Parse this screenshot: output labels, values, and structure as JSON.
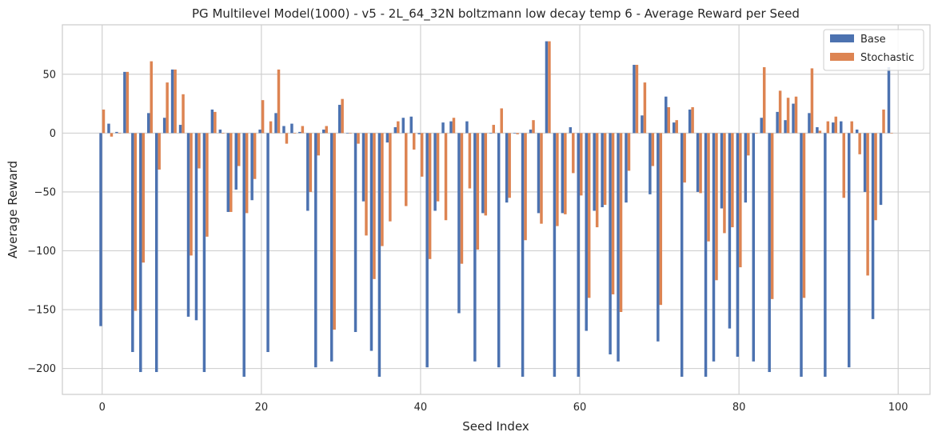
{
  "chart_data": {
    "type": "bar",
    "title": "PG Multilevel Model(1000) - v5 - 2L_64_32N boltzmann low decay temp 6 - Average Reward per Seed",
    "xlabel": "Seed Index",
    "ylabel": "Average Reward",
    "xlim": [
      -5,
      104
    ],
    "ylim": [
      -222,
      92
    ],
    "xticks": [
      0,
      20,
      40,
      60,
      80,
      100
    ],
    "yticks": [
      -200,
      -150,
      -100,
      -50,
      0,
      50
    ],
    "grid": true,
    "legend_position": "top-right",
    "categories": [
      0,
      1,
      2,
      3,
      4,
      5,
      6,
      7,
      8,
      9,
      10,
      11,
      12,
      13,
      14,
      15,
      16,
      17,
      18,
      19,
      20,
      21,
      22,
      23,
      24,
      25,
      26,
      27,
      28,
      29,
      30,
      31,
      32,
      33,
      34,
      35,
      36,
      37,
      38,
      39,
      40,
      41,
      42,
      43,
      44,
      45,
      46,
      47,
      48,
      49,
      50,
      51,
      52,
      53,
      54,
      55,
      56,
      57,
      58,
      59,
      60,
      61,
      62,
      63,
      64,
      65,
      66,
      67,
      68,
      69,
      70,
      71,
      72,
      73,
      74,
      75,
      76,
      77,
      78,
      79,
      80,
      81,
      82,
      83,
      84,
      85,
      86,
      87,
      88,
      89,
      90,
      91,
      92,
      93,
      94,
      95,
      96,
      97,
      98,
      99
    ],
    "series": [
      {
        "name": "Base",
        "color": "#4c72b0",
        "values": [
          -164,
          8,
          1,
          52,
          -186,
          -203,
          17,
          -203,
          13,
          54,
          7,
          -156,
          -159,
          -203,
          20,
          3,
          -67,
          -48,
          -207,
          -57,
          3,
          -186,
          17,
          6,
          8,
          1,
          -66,
          -199,
          3,
          -194,
          24,
          0,
          -169,
          -58,
          -185,
          -207,
          -8,
          5,
          13,
          14,
          -1,
          -199,
          -66,
          9,
          10,
          -153,
          10,
          -194,
          -68,
          0,
          -199,
          -59,
          0,
          -207,
          3,
          -68,
          78,
          -207,
          -68,
          5,
          -207,
          -168,
          -66,
          -63,
          -188,
          -194,
          -59,
          58,
          15,
          -52,
          -177,
          31,
          9,
          -207,
          20,
          -50,
          -207,
          -194,
          -64,
          -166,
          -190,
          -59,
          -194,
          13,
          -203,
          18,
          11,
          25,
          -207,
          17,
          5,
          -207,
          9,
          10,
          -199,
          3,
          -50,
          -158,
          -61,
          56
        ]
      },
      {
        "name": "Stochastic",
        "color": "#dd8452",
        "values": [
          20,
          -3,
          0,
          52,
          -151,
          -110,
          61,
          -31,
          43,
          54,
          33,
          -104,
          -30,
          -88,
          18,
          0,
          -67,
          -28,
          -68,
          -39,
          28,
          10,
          54,
          -9,
          0,
          6,
          -50,
          -19,
          6,
          -167,
          29,
          0,
          -9,
          -87,
          -124,
          -96,
          -75,
          10,
          -62,
          -14,
          -37,
          -107,
          -58,
          -74,
          13,
          -111,
          -47,
          -99,
          -70,
          7,
          21,
          -55,
          -1,
          -91,
          11,
          -77,
          78,
          -79,
          -69,
          -34,
          -53,
          -140,
          -80,
          -61,
          -137,
          -152,
          -32,
          58,
          43,
          -28,
          -146,
          22,
          11,
          -42,
          22,
          -51,
          -92,
          -125,
          -85,
          -80,
          -114,
          -19,
          0,
          56,
          -141,
          36,
          30,
          31,
          -140,
          55,
          2,
          10,
          14,
          -55,
          10,
          -18,
          -121,
          -74,
          20,
          0
        ]
      }
    ]
  }
}
